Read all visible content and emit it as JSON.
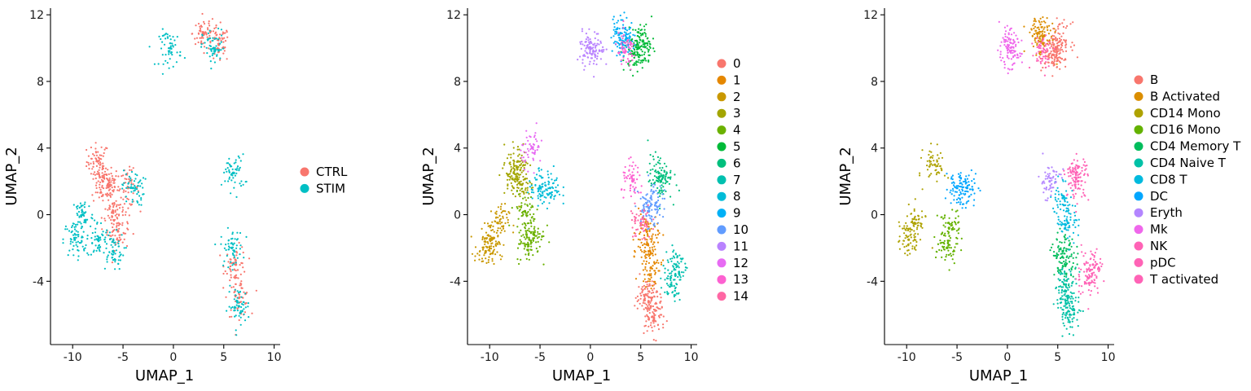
{
  "chart_data": [
    {
      "type": "scatter",
      "title": "",
      "xlabel": "UMAP_1",
      "ylabel": "UMAP_2",
      "xlim": [
        -12.2,
        10.6
      ],
      "ylim": [
        -7.8,
        12.4
      ],
      "xticks": [
        -10,
        -5,
        0,
        5,
        10
      ],
      "yticks": [
        -4,
        0,
        4,
        8,
        12
      ],
      "x_tick_labels": [
        "-10",
        "-5",
        "0",
        "5",
        "10"
      ],
      "y_tick_labels": [
        "-4",
        "0",
        "4",
        "8",
        "12"
      ],
      "grid": false,
      "legend_position": "right",
      "series": [
        {
          "name": "CTRL",
          "color": "#F8766D",
          "points": [
            [
              -7.5,
              3.2
            ],
            [
              -7.0,
              2.0
            ],
            [
              -6.5,
              1.8
            ],
            [
              -6.0,
              0.2
            ],
            [
              -5.5,
              -1.0
            ],
            [
              -4.5,
              1.6
            ],
            [
              3.0,
              10.9
            ],
            [
              4.5,
              10.2
            ],
            [
              6.2,
              -3.0
            ],
            [
              6.5,
              -5.0
            ]
          ]
        },
        {
          "name": "STIM",
          "color": "#00BFC4",
          "points": [
            [
              -9.8,
              -1.5
            ],
            [
              -9.0,
              0.0
            ],
            [
              -7.5,
              -1.5
            ],
            [
              -6.0,
              -2.2
            ],
            [
              -4.0,
              1.6
            ],
            [
              4.0,
              10.0
            ],
            [
              6.0,
              2.5
            ],
            [
              5.8,
              -2.0
            ],
            [
              6.5,
              -5.5
            ],
            [
              -0.3,
              10.0
            ]
          ]
        }
      ]
    },
    {
      "type": "scatter",
      "title": "",
      "xlabel": "UMAP_1",
      "ylabel": "UMAP_2",
      "xlim": [
        -12.2,
        10.6
      ],
      "ylim": [
        -7.8,
        12.4
      ],
      "xticks": [
        -10,
        -5,
        0,
        5,
        10
      ],
      "yticks": [
        -4,
        0,
        4,
        8,
        12
      ],
      "x_tick_labels": [
        "-10",
        "-5",
        "0",
        "5",
        "10"
      ],
      "y_tick_labels": [
        "-4",
        "0",
        "4",
        "8",
        "12"
      ],
      "grid": false,
      "legend_position": "right",
      "series": [
        {
          "name": "0",
          "color": "#F8766D",
          "points": [
            [
              6.0,
              -5.5
            ],
            [
              5.5,
              -4.8
            ],
            [
              6.3,
              -6.2
            ]
          ]
        },
        {
          "name": "1",
          "color": "#E58700",
          "points": [
            [
              5.8,
              -2.2
            ],
            [
              5.6,
              -1.0
            ],
            [
              6.0,
              -3.2
            ]
          ]
        },
        {
          "name": "2",
          "color": "#C99800",
          "points": [
            [
              -9.8,
              -1.5
            ],
            [
              -9.2,
              -0.5
            ],
            [
              -10.4,
              -2.2
            ]
          ]
        },
        {
          "name": "3",
          "color": "#A3A500",
          "points": [
            [
              -7.2,
              3.2
            ],
            [
              -6.8,
              1.8
            ],
            [
              -7.6,
              2.5
            ]
          ]
        },
        {
          "name": "4",
          "color": "#6BB100",
          "points": [
            [
              -6.2,
              -1.8
            ],
            [
              -5.6,
              -1.2
            ],
            [
              -6.5,
              0.2
            ]
          ]
        },
        {
          "name": "5",
          "color": "#00BA38",
          "points": [
            [
              4.8,
              10.0
            ],
            [
              5.2,
              10.4
            ],
            [
              4.4,
              9.6
            ]
          ]
        },
        {
          "name": "6",
          "color": "#00BF7D",
          "points": [
            [
              6.8,
              2.5
            ],
            [
              7.0,
              2.0
            ]
          ]
        },
        {
          "name": "7",
          "color": "#00C0AF",
          "points": [
            [
              8.5,
              -3.0
            ],
            [
              8.0,
              -4.2
            ]
          ]
        },
        {
          "name": "8",
          "color": "#00BCD8",
          "points": [
            [
              -4.0,
              1.6
            ],
            [
              -5.0,
              1.6
            ]
          ]
        },
        {
          "name": "9",
          "color": "#00B0F6",
          "points": [
            [
              3.0,
              10.9
            ],
            [
              3.5,
              10.5
            ]
          ]
        },
        {
          "name": "10",
          "color": "#619CFF",
          "points": [
            [
              6.0,
              1.0
            ],
            [
              5.8,
              0.2
            ]
          ]
        },
        {
          "name": "11",
          "color": "#B983FF",
          "points": [
            [
              0.0,
              10.0
            ],
            [
              0.3,
              9.8
            ]
          ]
        },
        {
          "name": "12",
          "color": "#E76BF3",
          "points": [
            [
              -5.8,
              4.0
            ]
          ]
        },
        {
          "name": "13",
          "color": "#FD61D1",
          "points": [
            [
              4.2,
              2.0
            ],
            [
              3.5,
              9.8
            ]
          ]
        },
        {
          "name": "14",
          "color": "#FF67A4",
          "points": [
            [
              5.0,
              -0.5
            ]
          ]
        }
      ]
    },
    {
      "type": "scatter",
      "title": "",
      "xlabel": "UMAP_1",
      "ylabel": "UMAP_2",
      "xlim": [
        -12.2,
        10.6
      ],
      "ylim": [
        -7.8,
        12.4
      ],
      "xticks": [
        -10,
        -5,
        0,
        5,
        10
      ],
      "yticks": [
        -4,
        0,
        4,
        8,
        12
      ],
      "x_tick_labels": [
        "-10",
        "-5",
        "0",
        "5",
        "10"
      ],
      "y_tick_labels": [
        "-4",
        "0",
        "4",
        "8",
        "12"
      ],
      "grid": false,
      "legend_position": "right",
      "series": [
        {
          "name": "B",
          "color": "#F8766D",
          "points": [
            [
              4.8,
              10.0
            ],
            [
              5.2,
              10.4
            ],
            [
              4.5,
              9.6
            ]
          ]
        },
        {
          "name": "B Activated",
          "color": "#DB8E00",
          "points": [
            [
              3.0,
              10.9
            ],
            [
              3.5,
              10.7
            ]
          ]
        },
        {
          "name": "CD14 Mono",
          "color": "#AEA200",
          "points": [
            [
              -9.8,
              -1.5
            ],
            [
              -7.2,
              3.0
            ],
            [
              -9.2,
              -0.5
            ]
          ]
        },
        {
          "name": "CD16 Mono",
          "color": "#64B200",
          "points": [
            [
              -6.0,
              -2.0
            ],
            [
              -5.8,
              -0.8
            ]
          ]
        },
        {
          "name": "CD4 Memory T",
          "color": "#00BD5C",
          "points": [
            [
              5.5,
              -2.2
            ],
            [
              5.8,
              -3.0
            ]
          ]
        },
        {
          "name": "CD4 Naive T",
          "color": "#00C1A7",
          "points": [
            [
              6.0,
              -5.0
            ],
            [
              6.2,
              -6.0
            ],
            [
              5.8,
              -4.2
            ]
          ]
        },
        {
          "name": "CD8 T",
          "color": "#00BADE",
          "points": [
            [
              5.5,
              1.0
            ],
            [
              6.0,
              -0.5
            ]
          ]
        },
        {
          "name": "DC",
          "color": "#00A6FF",
          "points": [
            [
              -4.0,
              1.6
            ],
            [
              -5.0,
              1.6
            ]
          ]
        },
        {
          "name": "Eryth",
          "color": "#B385FF",
          "points": [
            [
              4.2,
              2.0
            ]
          ]
        },
        {
          "name": "Mk",
          "color": "#EF67EB",
          "points": [
            [
              0.0,
              10.0
            ],
            [
              0.3,
              9.8
            ]
          ]
        },
        {
          "name": "NK",
          "color": "#FF63B6",
          "points": [
            [
              6.8,
              2.5
            ],
            [
              7.0,
              2.0
            ]
          ]
        },
        {
          "name": "pDC",
          "color": "#FF63B6",
          "points": [
            [
              3.5,
              9.8
            ]
          ]
        },
        {
          "name": "T activated",
          "color": "#FF63B6",
          "points": [
            [
              8.5,
              -3.0
            ],
            [
              8.0,
              -3.8
            ]
          ]
        }
      ]
    }
  ]
}
